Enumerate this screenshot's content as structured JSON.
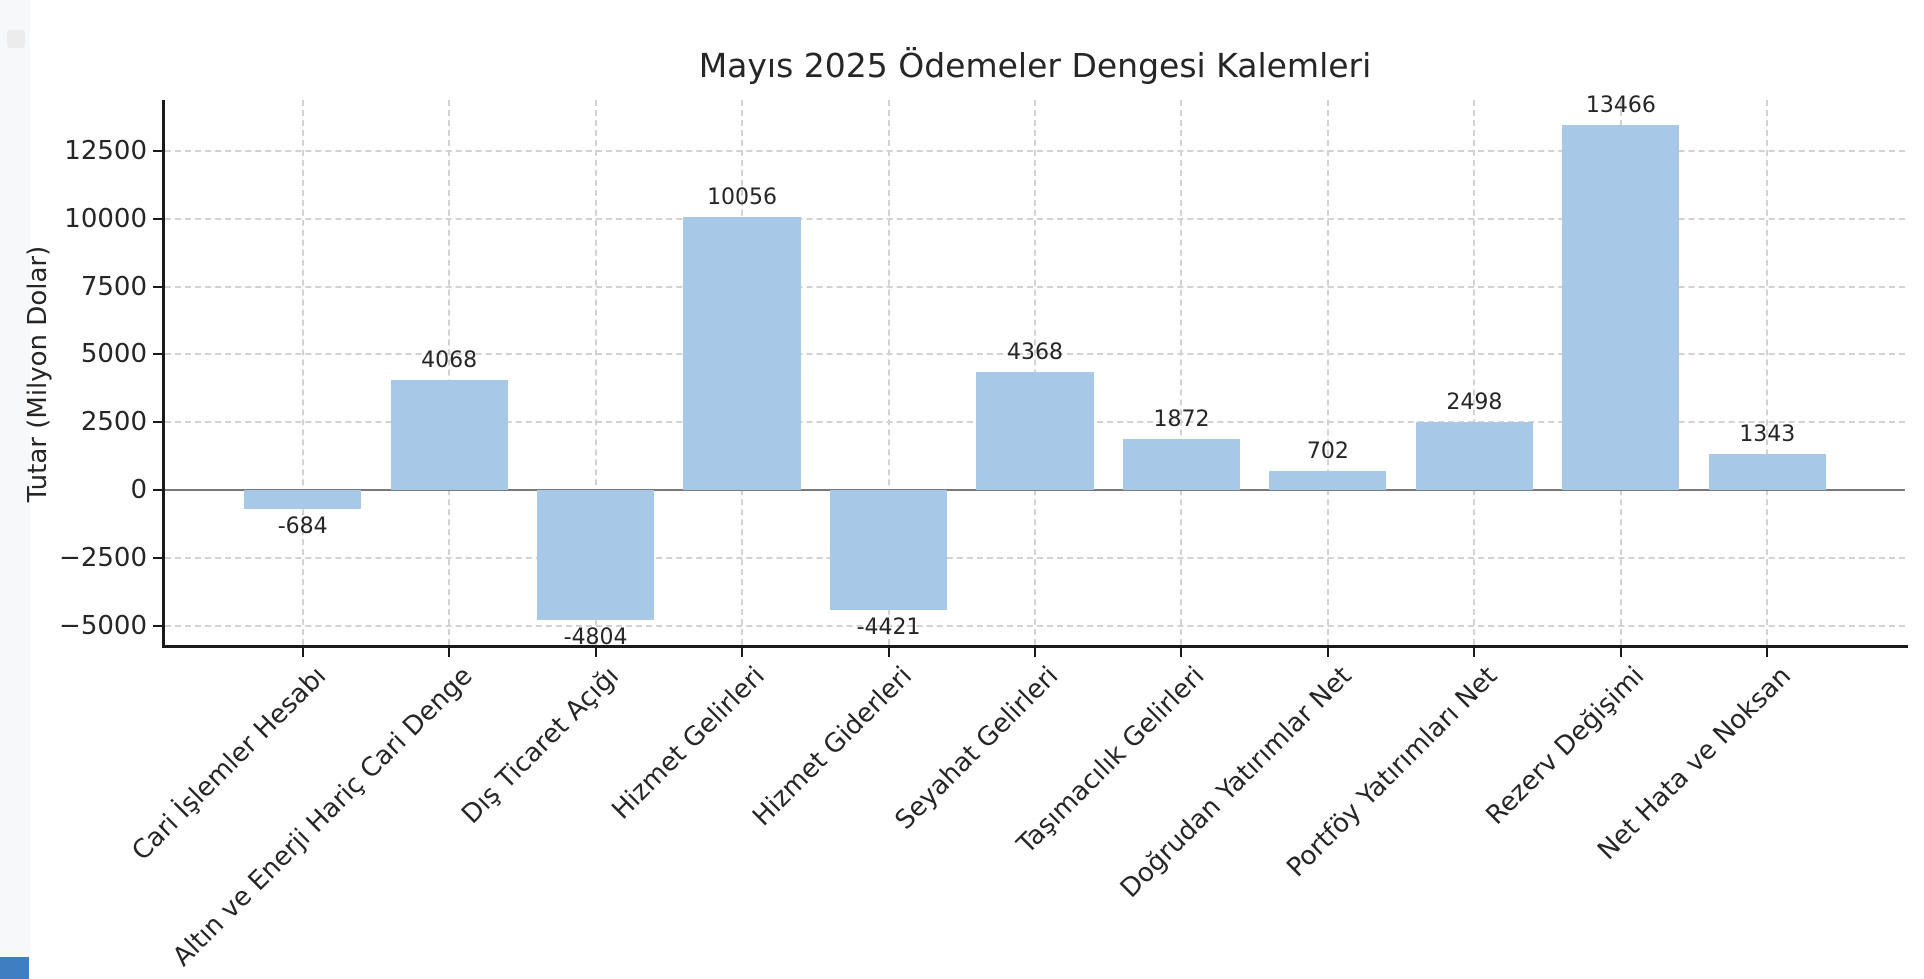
{
  "page": {
    "background": "#ffffff"
  },
  "chart_data": {
    "type": "bar",
    "title": "Mayıs 2025 Ödemeler Dengesi Kalemleri",
    "xlabel": "",
    "ylabel": "Tutar (Milyon Dolar)",
    "categories": [
      "Cari İşlemler Hesabı",
      "Altın ve Enerji Hariç Cari Denge",
      "Dış Ticaret Açığı",
      "Hizmet Gelirleri",
      "Hizmet Giderleri",
      "Seyahat Gelirleri",
      "Taşımacılık Gelirleri",
      "Doğrudan Yatırımlar Net",
      "Portföy Yatırımları Net",
      "Rezerv Değişimi",
      "Net Hata ve Noksan"
    ],
    "values": [
      -684,
      4068,
      -4804,
      10056,
      -4421,
      4368,
      1872,
      702,
      2498,
      13466,
      1343
    ],
    "bar_labels": [
      "-684",
      "4068",
      "-4804",
      "10056",
      "-4421",
      "4368",
      "1872",
      "702",
      "2498",
      "13466",
      "1343"
    ],
    "yticks": [
      -5000,
      -2500,
      0,
      2500,
      5000,
      7500,
      10000,
      12500
    ],
    "ytick_labels": [
      "−5000",
      "−2500",
      "0",
      "2500",
      "5000",
      "7500",
      "10000",
      "12500"
    ],
    "ylim": [
      -5717,
      14380
    ],
    "xlim": [
      -0.94,
      10.94
    ],
    "bar_width": 0.8,
    "grid": true,
    "grid_style": "dashed",
    "legend": null,
    "x_tick_rotation": 45,
    "bar_color": "#a8c8e8",
    "axis_color": "#1a1a1a",
    "grid_color": "#d2d2d2",
    "zero_line_color": "#7a7a7a",
    "text_color": "#262626"
  }
}
